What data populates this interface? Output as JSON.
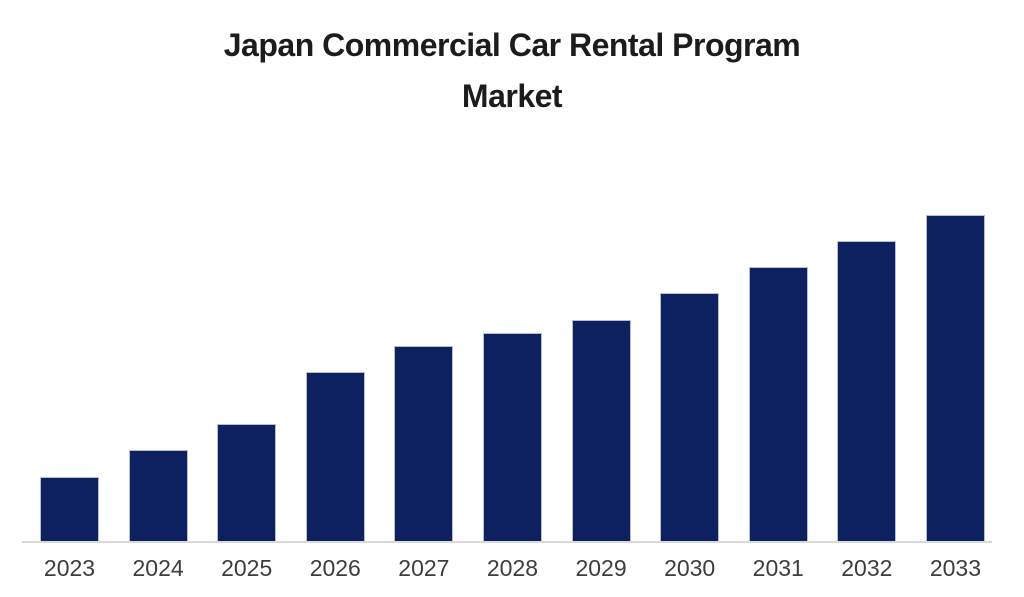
{
  "page": {
    "background_color": "#ffffff"
  },
  "chart_data": {
    "type": "bar",
    "title": "Japan Commercial Car Rental Program Market",
    "title_lines": [
      "Japan Commercial Car Rental Program",
      "Market"
    ],
    "categories": [
      "2023",
      "2024",
      "2025",
      "2026",
      "2027",
      "2028",
      "2029",
      "2030",
      "2031",
      "2032",
      "2033"
    ],
    "values": [
      20,
      28,
      36,
      52,
      60,
      64,
      68,
      76,
      84,
      92,
      100
    ],
    "value_note": "Relative bar heights as percent of the tallest bar (2033 = 100); no y-axis, gridlines, data labels, or legend are shown in the source image",
    "xlabel": "",
    "ylabel": "",
    "ylim": [
      0,
      100
    ],
    "grid": false,
    "legend": false,
    "colors": {
      "bar": "#0d2161",
      "bar_edge": "#b7bed2",
      "axis_line": "#d9d9d9",
      "tick_label": "#3d3d3d",
      "title": "#1c1c1c"
    }
  }
}
